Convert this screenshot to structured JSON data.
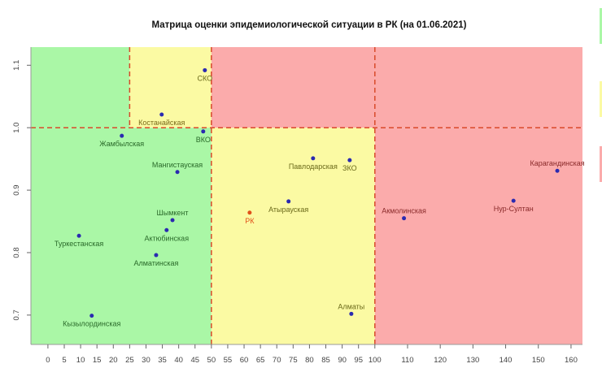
{
  "chart_data": {
    "type": "scatter",
    "title": "Матрица оценки эпидемиологической ситуации в РК (на 01.06.2021)",
    "xlabel": "",
    "ylabel": "",
    "xlim": [
      -5.2,
      163.5
    ],
    "ylim": [
      0.653,
      1.129
    ],
    "grid": false,
    "x_ticks": [
      0,
      5,
      10,
      15,
      20,
      25,
      30,
      35,
      40,
      45,
      50,
      55,
      60,
      65,
      70,
      75,
      80,
      85,
      90,
      95,
      100,
      110,
      120,
      130,
      140,
      150,
      160
    ],
    "y_ticks": [
      0.7,
      0.8,
      0.9,
      1.0,
      1.1
    ],
    "zones": [
      {
        "x": [
          -5.2,
          50
        ],
        "y": [
          0.653,
          1.0
        ],
        "color": "#aaf7a6"
      },
      {
        "x": [
          -5.2,
          25
        ],
        "y": [
          1.0,
          1.129
        ],
        "color": "#aaf7a6"
      },
      {
        "x": [
          25,
          50
        ],
        "y": [
          1.0,
          1.129
        ],
        "color": "#fbfaa3"
      },
      {
        "x": [
          50,
          100
        ],
        "y": [
          0.653,
          1.0
        ],
        "color": "#fbfaa3"
      },
      {
        "x": [
          50,
          163.5
        ],
        "y": [
          1.0,
          1.129
        ],
        "color": "#fbabab"
      },
      {
        "x": [
          100,
          163.5
        ],
        "y": [
          0.653,
          1.0
        ],
        "color": "#fbabab"
      }
    ],
    "threshold_lines": {
      "x": [
        25,
        50,
        100
      ],
      "y": [
        1.0
      ],
      "color": "#d94a2a"
    },
    "points": [
      {
        "name": "СКО",
        "x": 48.0,
        "y": 1.092,
        "label_color": "#6b6a1a",
        "pos": "below"
      },
      {
        "name": "Костанайская",
        "x": 34.8,
        "y": 1.021,
        "label_color": "#7a6a1a",
        "pos": "below"
      },
      {
        "name": "Жамбылская",
        "x": 22.6,
        "y": 0.987,
        "label_color": "#2a6a2a",
        "pos": "below"
      },
      {
        "name": "ВКО",
        "x": 47.5,
        "y": 0.994,
        "label_color": "#2a6a2a",
        "pos": "below"
      },
      {
        "name": "Мангистауская",
        "x": 39.6,
        "y": 0.929,
        "label_color": "#2a6a2a",
        "pos": "above"
      },
      {
        "name": "Шымкент",
        "x": 38.1,
        "y": 0.852,
        "label_color": "#2a6a2a",
        "pos": "above"
      },
      {
        "name": "Актюбинская",
        "x": 36.3,
        "y": 0.836,
        "label_color": "#2a6a2a",
        "pos": "below"
      },
      {
        "name": "Алматинская",
        "x": 33.1,
        "y": 0.796,
        "label_color": "#2a6a2a",
        "pos": "below"
      },
      {
        "name": "Туркестанская",
        "x": 9.5,
        "y": 0.827,
        "label_color": "#2a6a2a",
        "pos": "below"
      },
      {
        "name": "Кызылординская",
        "x": 13.4,
        "y": 0.699,
        "label_color": "#2a6a2a",
        "pos": "below"
      },
      {
        "name": "РК",
        "x": 61.7,
        "y": 0.864,
        "label_color": "#e0501a",
        "point_color": "#e0501a",
        "pos": "below"
      },
      {
        "name": "Атырауская",
        "x": 73.6,
        "y": 0.882,
        "label_color": "#6b6a1a",
        "pos": "below"
      },
      {
        "name": "Павлодарская",
        "x": 81.1,
        "y": 0.951,
        "label_color": "#6b6a1a",
        "pos": "below"
      },
      {
        "name": "ЗКО",
        "x": 92.3,
        "y": 0.948,
        "label_color": "#6b6a1a",
        "pos": "below"
      },
      {
        "name": "Алматы",
        "x": 92.8,
        "y": 0.702,
        "label_color": "#6b6a1a",
        "pos": "above"
      },
      {
        "name": "Акмолинская",
        "x": 108.9,
        "y": 0.855,
        "label_color": "#8a2a2a",
        "pos": "above"
      },
      {
        "name": "Нур-Султан",
        "x": 142.4,
        "y": 0.883,
        "label_color": "#8a2a2a",
        "pos": "below"
      },
      {
        "name": "Карагандинская",
        "x": 155.8,
        "y": 0.931,
        "label_color": "#8a2a2a",
        "pos": "above"
      }
    ],
    "point_color": "#2a2ab0",
    "legend": {
      "placement": "right",
      "swatches": [
        "#aaf7a6",
        "#fbfaa3",
        "#fbabab"
      ]
    }
  }
}
